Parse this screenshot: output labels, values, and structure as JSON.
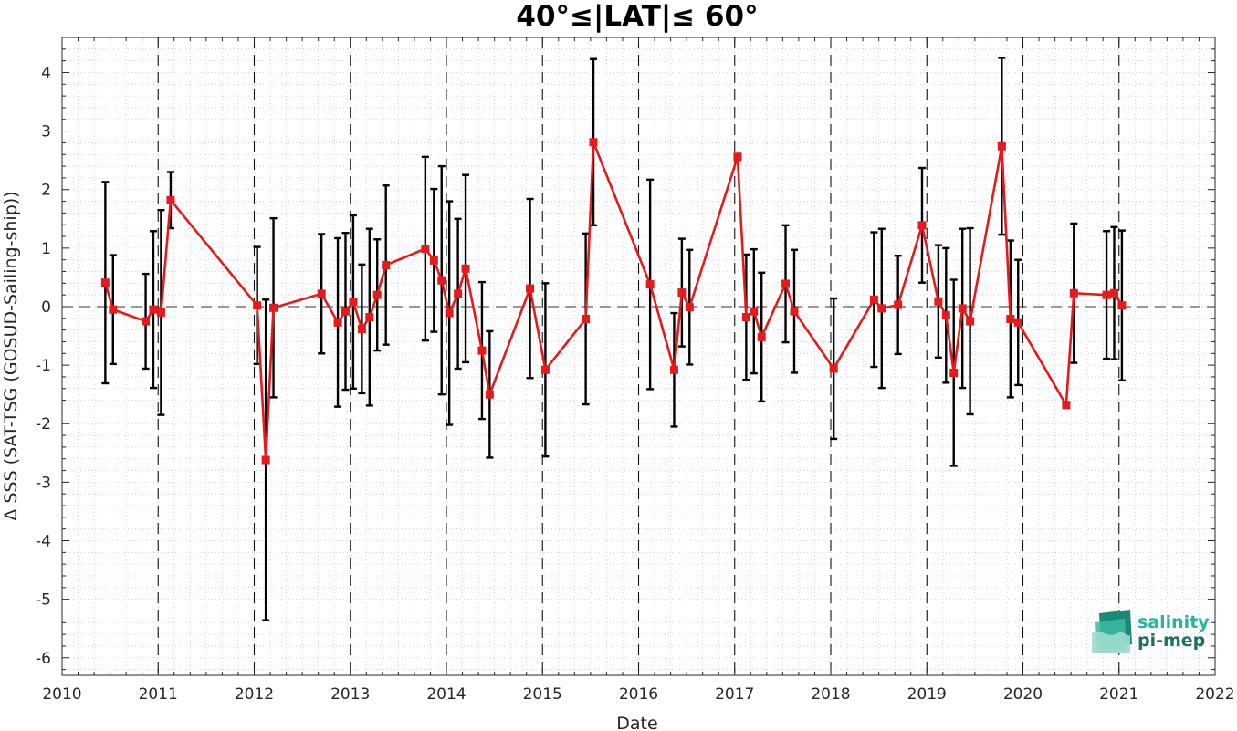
{
  "chart_data": {
    "type": "line",
    "title": "40°≤|LAT|≤ 60°",
    "xlabel": "Date",
    "ylabel": "Δ SSS (SAT-TSG (GOSUD-Sailing-ship))",
    "xlim": [
      2010,
      2022
    ],
    "ylim": [
      -6.3,
      4.6
    ],
    "x_ticks": [
      "2010",
      "2011",
      "2012",
      "2013",
      "2014",
      "2015",
      "2016",
      "2017",
      "2018",
      "2019",
      "2020",
      "2021",
      "2022"
    ],
    "y_ticks": [
      "-6",
      "-5",
      "-4",
      "-3",
      "-2",
      "-1",
      "0",
      "1",
      "2",
      "3",
      "4"
    ],
    "grid": "minor-dotted",
    "year_dashed_lines": true,
    "zero_dashed_line": true,
    "series": [
      {
        "color": "#e41a1c",
        "marker": "square",
        "errorbar_color": "#000000",
        "x": [
          2010.45,
          2010.53,
          2010.87,
          2010.95,
          2011.03,
          2011.13,
          2012.03,
          2012.12,
          2012.2,
          2012.7,
          2012.87,
          2012.95,
          2013.03,
          2013.12,
          2013.2,
          2013.28,
          2013.37,
          2013.78,
          2013.87,
          2013.95,
          2014.03,
          2014.12,
          2014.2,
          2014.37,
          2014.45,
          2014.87,
          2015.03,
          2015.45,
          2015.53,
          2016.12,
          2016.37,
          2016.45,
          2016.53,
          2017.03,
          2017.12,
          2017.2,
          2017.28,
          2017.53,
          2017.62,
          2018.03,
          2018.45,
          2018.53,
          2018.7,
          2018.95,
          2019.12,
          2019.2,
          2019.28,
          2019.37,
          2019.45,
          2019.78,
          2019.87,
          2019.95,
          2020.45,
          2020.53,
          2020.87,
          2020.95,
          2021.03
        ],
        "y": [
          0.41,
          -0.05,
          -0.25,
          -0.05,
          -0.1,
          1.82,
          0.02,
          -2.62,
          -0.02,
          0.22,
          -0.27,
          -0.08,
          0.08,
          -0.38,
          -0.18,
          0.2,
          0.71,
          0.99,
          0.79,
          0.45,
          -0.11,
          0.22,
          0.65,
          -0.75,
          -1.5,
          0.31,
          -1.08,
          -0.21,
          2.81,
          0.38,
          -1.08,
          0.24,
          -0.01,
          2.56,
          -0.18,
          -0.08,
          -0.52,
          0.39,
          -0.08,
          -1.06,
          0.12,
          -0.03,
          0.03,
          1.39,
          0.09,
          -0.15,
          -1.13,
          -0.03,
          -0.25,
          2.74,
          -0.21,
          -0.27,
          -1.68,
          0.23,
          0.2,
          0.23,
          0.02
        ],
        "err": [
          1.72,
          0.93,
          0.81,
          1.34,
          1.75,
          0.48,
          1.0,
          2.74,
          1.53,
          1.02,
          1.44,
          1.34,
          1.48,
          1.1,
          1.51,
          0.95,
          1.36,
          1.57,
          1.22,
          1.95,
          1.91,
          1.28,
          1.6,
          1.17,
          1.08,
          1.53,
          1.48,
          1.46,
          1.42,
          1.79,
          0.97,
          0.92,
          0.98,
          0.05,
          1.07,
          1.06,
          1.1,
          1.0,
          1.05,
          1.2,
          1.15,
          1.36,
          0.84,
          0.98,
          0.96,
          1.15,
          1.59,
          1.36,
          1.59,
          1.51,
          1.34,
          1.07,
          0.03,
          1.19,
          1.09,
          1.13,
          1.28
        ]
      }
    ]
  },
  "logo": {
    "line1": "salinity",
    "line2": "pi-mep"
  }
}
